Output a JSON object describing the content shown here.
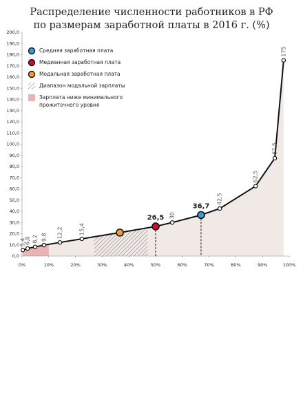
{
  "chart_data": {
    "type": "line",
    "title": [
      "Распределение численности работников в РФ",
      "по размерам заработной платы в 2016 г. (%)"
    ],
    "x": [
      0.3,
      2.1,
      4.9,
      8.2,
      14.2,
      22.4,
      36.6,
      50,
      56.2,
      67,
      74,
      87.4,
      94.6,
      97.9
    ],
    "series": [
      {
        "color": "#111111",
        "values": [
          5.4,
          6.8,
          8.2,
          9.8,
          12.2,
          15.4,
          21,
          26.5,
          30,
          36.7,
          42.5,
          62.5,
          87.5,
          175
        ],
        "value_labels": [
          "5,4",
          "6,8",
          "8,2",
          "9,8",
          "12,2",
          "15,4",
          null,
          "26,5",
          "30",
          "36,7",
          "42,5",
          "62,5",
          "87,5",
          "175"
        ],
        "point_colors": [
          "#ffffff",
          "#ffffff",
          "#ffffff",
          "#ffffff",
          "#ffffff",
          "#ffffff",
          "#f0a030",
          "#c8102e",
          "#ffffff",
          "#3a9ad9",
          "#ffffff",
          "#ffffff",
          "#ffffff",
          "#ffffff"
        ]
      }
    ],
    "xlim": [
      0,
      100
    ],
    "ylim": [
      0,
      200
    ],
    "xticks": [
      {
        "value": 0,
        "label": "0%"
      },
      {
        "value": 10,
        "label": "10%"
      },
      {
        "value": 20,
        "label": "20%"
      },
      {
        "value": 30,
        "label": "30%"
      },
      {
        "value": 40,
        "label": "40%"
      },
      {
        "value": 50,
        "label": "50%"
      },
      {
        "value": 60,
        "label": "60%"
      },
      {
        "value": 70,
        "label": "70%"
      },
      {
        "value": 80,
        "label": "80%"
      },
      {
        "value": 90,
        "label": "90%"
      },
      {
        "value": 100,
        "label": "100%"
      }
    ],
    "yticks": [
      {
        "value": 0,
        "label": "0,0"
      },
      {
        "value": 10,
        "label": "10,0"
      },
      {
        "value": 20,
        "label": "20,0"
      },
      {
        "value": 30,
        "label": "30,0"
      },
      {
        "value": 40,
        "label": "40,0"
      },
      {
        "value": 50,
        "label": "50,0"
      },
      {
        "value": 60,
        "label": "60,0"
      },
      {
        "value": 70,
        "label": "70,0"
      },
      {
        "value": 80,
        "label": "80,0"
      },
      {
        "value": 90,
        "label": "90,0"
      },
      {
        "value": 100,
        "label": "100,0"
      },
      {
        "value": 110,
        "label": "110,0"
      },
      {
        "value": 120,
        "label": "120,0"
      },
      {
        "value": 130,
        "label": "130,0"
      },
      {
        "value": 140,
        "label": "140,0"
      },
      {
        "value": 150,
        "label": "150,0"
      },
      {
        "value": 160,
        "label": "160,0"
      },
      {
        "value": 170,
        "label": "170,0"
      },
      {
        "value": 180,
        "label": "180,0"
      },
      {
        "value": 190,
        "label": "190,0"
      },
      {
        "value": 200,
        "label": "200,0"
      }
    ],
    "area_color": "#f1e9e6",
    "min_wage_range": [
      0,
      10
    ],
    "min_wage_color": "#e8b4b4",
    "modal_range": [
      27,
      47
    ],
    "legend": [
      {
        "kind": "dot",
        "color": "#3a9ad9",
        "label": [
          "Средняя заработная плата"
        ]
      },
      {
        "kind": "dot",
        "color": "#c8102e",
        "label": [
          "Медианная заработная плата"
        ]
      },
      {
        "kind": "dot",
        "color": "#f0a030",
        "label": [
          "Модальная заработная плата"
        ]
      },
      {
        "kind": "hatch",
        "color": "#999999",
        "label": [
          "Диапазон модальной зарплаты"
        ]
      },
      {
        "kind": "swatch",
        "color": "#e8b4b4",
        "label": [
          "Зарплата ниже минимального",
          "прожиточного уровня"
        ]
      }
    ]
  }
}
